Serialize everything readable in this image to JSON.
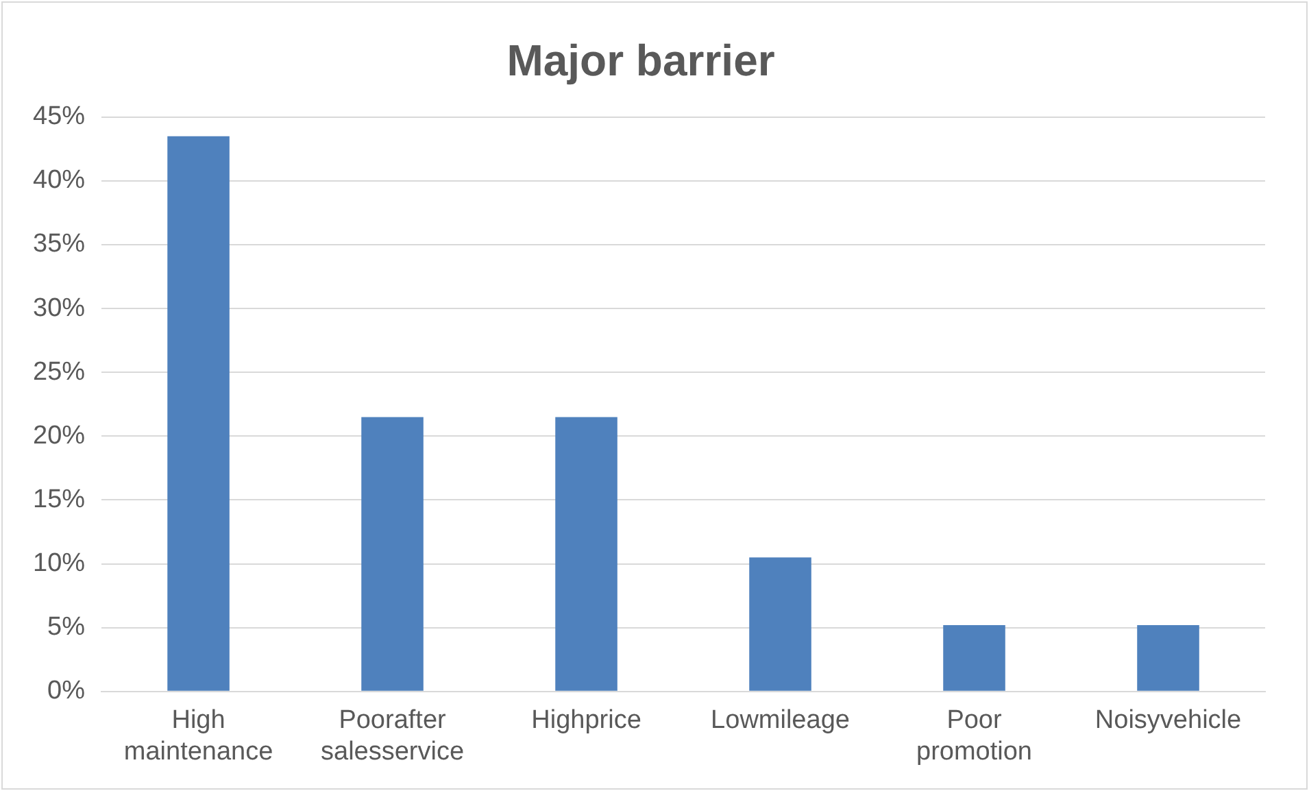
{
  "chart_data": {
    "type": "bar",
    "title": "Major barrier",
    "categories": [
      "High maintenance",
      "Poorafter salesservice",
      "Highprice",
      "Lowmileage",
      "Poor promotion",
      "Noisyvehicle"
    ],
    "values": [
      43.5,
      21.5,
      21.5,
      10.5,
      5.2,
      5.2
    ],
    "color": "#4f81bd",
    "ylim": [
      0,
      45
    ],
    "yticks": [
      {
        "value": 0,
        "label": "0%"
      },
      {
        "value": 5,
        "label": "5%"
      },
      {
        "value": 10,
        "label": "10%"
      },
      {
        "value": 15,
        "label": "15%"
      },
      {
        "value": 20,
        "label": "20%"
      },
      {
        "value": 25,
        "label": "25%"
      },
      {
        "value": 30,
        "label": "30%"
      },
      {
        "value": 35,
        "label": "35%"
      },
      {
        "value": 40,
        "label": "40%"
      },
      {
        "value": 45,
        "label": "45%"
      }
    ],
    "grid": "y"
  }
}
